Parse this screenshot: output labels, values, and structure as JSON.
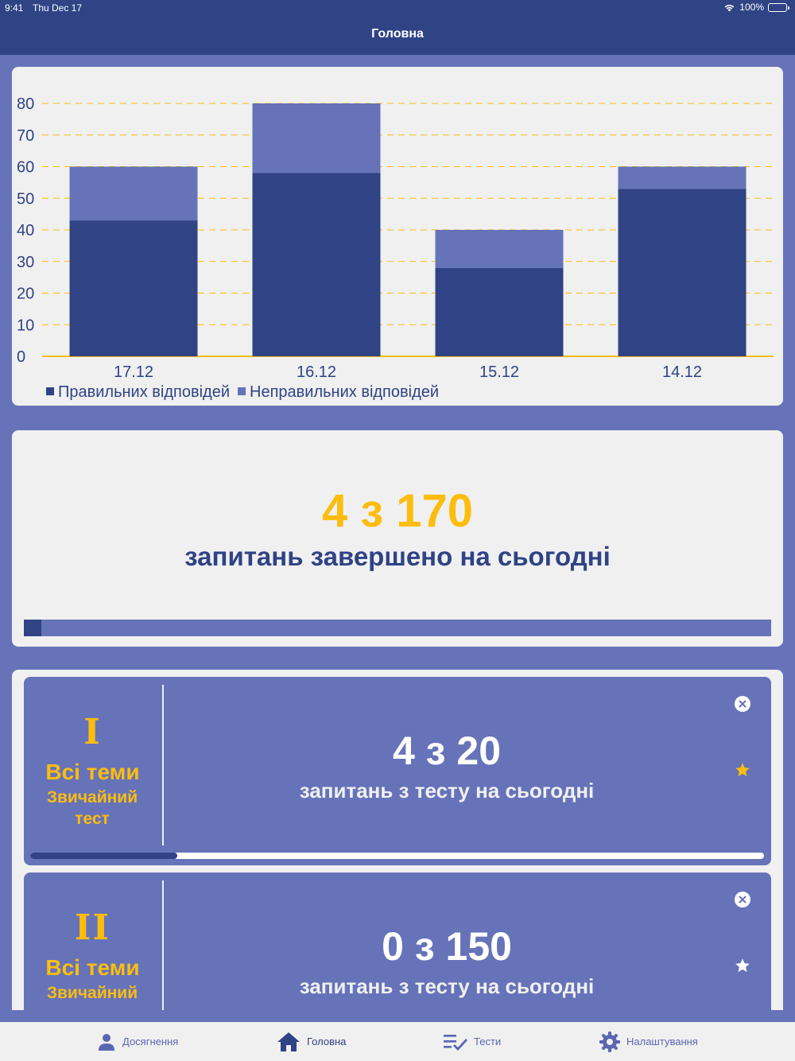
{
  "status_bar": {
    "time": "9:41",
    "date": "Thu Dec 17",
    "battery": "100%"
  },
  "header": {
    "title": "Головна"
  },
  "colors": {
    "primary": "#2f4385",
    "secondary": "#6673b9",
    "accent": "#fcbd0f",
    "card": "#f0f0f0"
  },
  "chart_data": {
    "type": "bar",
    "stacked": true,
    "categories": [
      "17.12",
      "16.12",
      "15.12",
      "14.12"
    ],
    "series": [
      {
        "name": "Правильних відповідей",
        "values": [
          43,
          58,
          28,
          53
        ],
        "color": "#2f4385"
      },
      {
        "name": "Неправильних відповідей",
        "values": [
          17,
          22,
          12,
          7
        ],
        "color": "#6673b9"
      }
    ],
    "ylim": [
      0,
      80
    ],
    "yticks": [
      0,
      10,
      20,
      30,
      40,
      50,
      60,
      70,
      80
    ],
    "grid": true,
    "grid_color": "#fcbd0f",
    "legend": "bottom-left"
  },
  "daily": {
    "count_text": "4 з 170",
    "caption": "запитань завершено на сьогодні",
    "done": 4,
    "total": 170
  },
  "tests": [
    {
      "numeral": "I",
      "topic": "Всі теми",
      "type": "Звичайний тест",
      "count_text": "4 з 20",
      "caption": "запитань з тесту на сьогодні",
      "done": 4,
      "total": 20,
      "favorite": true,
      "close_icon": "close-circle-icon",
      "star_icon": "star-icon"
    },
    {
      "numeral": "II",
      "topic": "Всі теми",
      "type": "Звичайний тест",
      "count_text": "0 з 150",
      "caption": "запитань з тесту на сьогодні",
      "done": 0,
      "total": 150,
      "favorite": false,
      "close_icon": "close-circle-icon",
      "star_icon": "star-icon"
    }
  ],
  "tabbar": {
    "items": [
      {
        "label": "Досягнення",
        "icon": "person-icon",
        "active": false
      },
      {
        "label": "Головна",
        "icon": "home-icon",
        "active": true
      },
      {
        "label": "Тести",
        "icon": "checklist-icon",
        "active": false
      },
      {
        "label": "Налаштування",
        "icon": "gear-icon",
        "active": false
      }
    ]
  }
}
